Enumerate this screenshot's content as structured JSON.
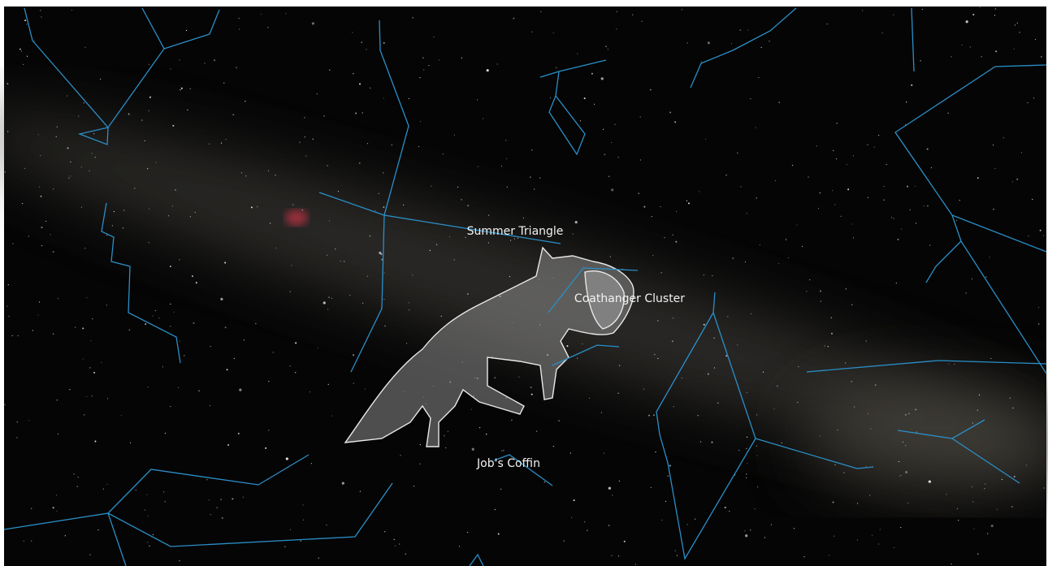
{
  "sky": {
    "labels": [
      "Summer Triangle",
      "Coathanger Cluster",
      "Job's Coffin"
    ]
  }
}
